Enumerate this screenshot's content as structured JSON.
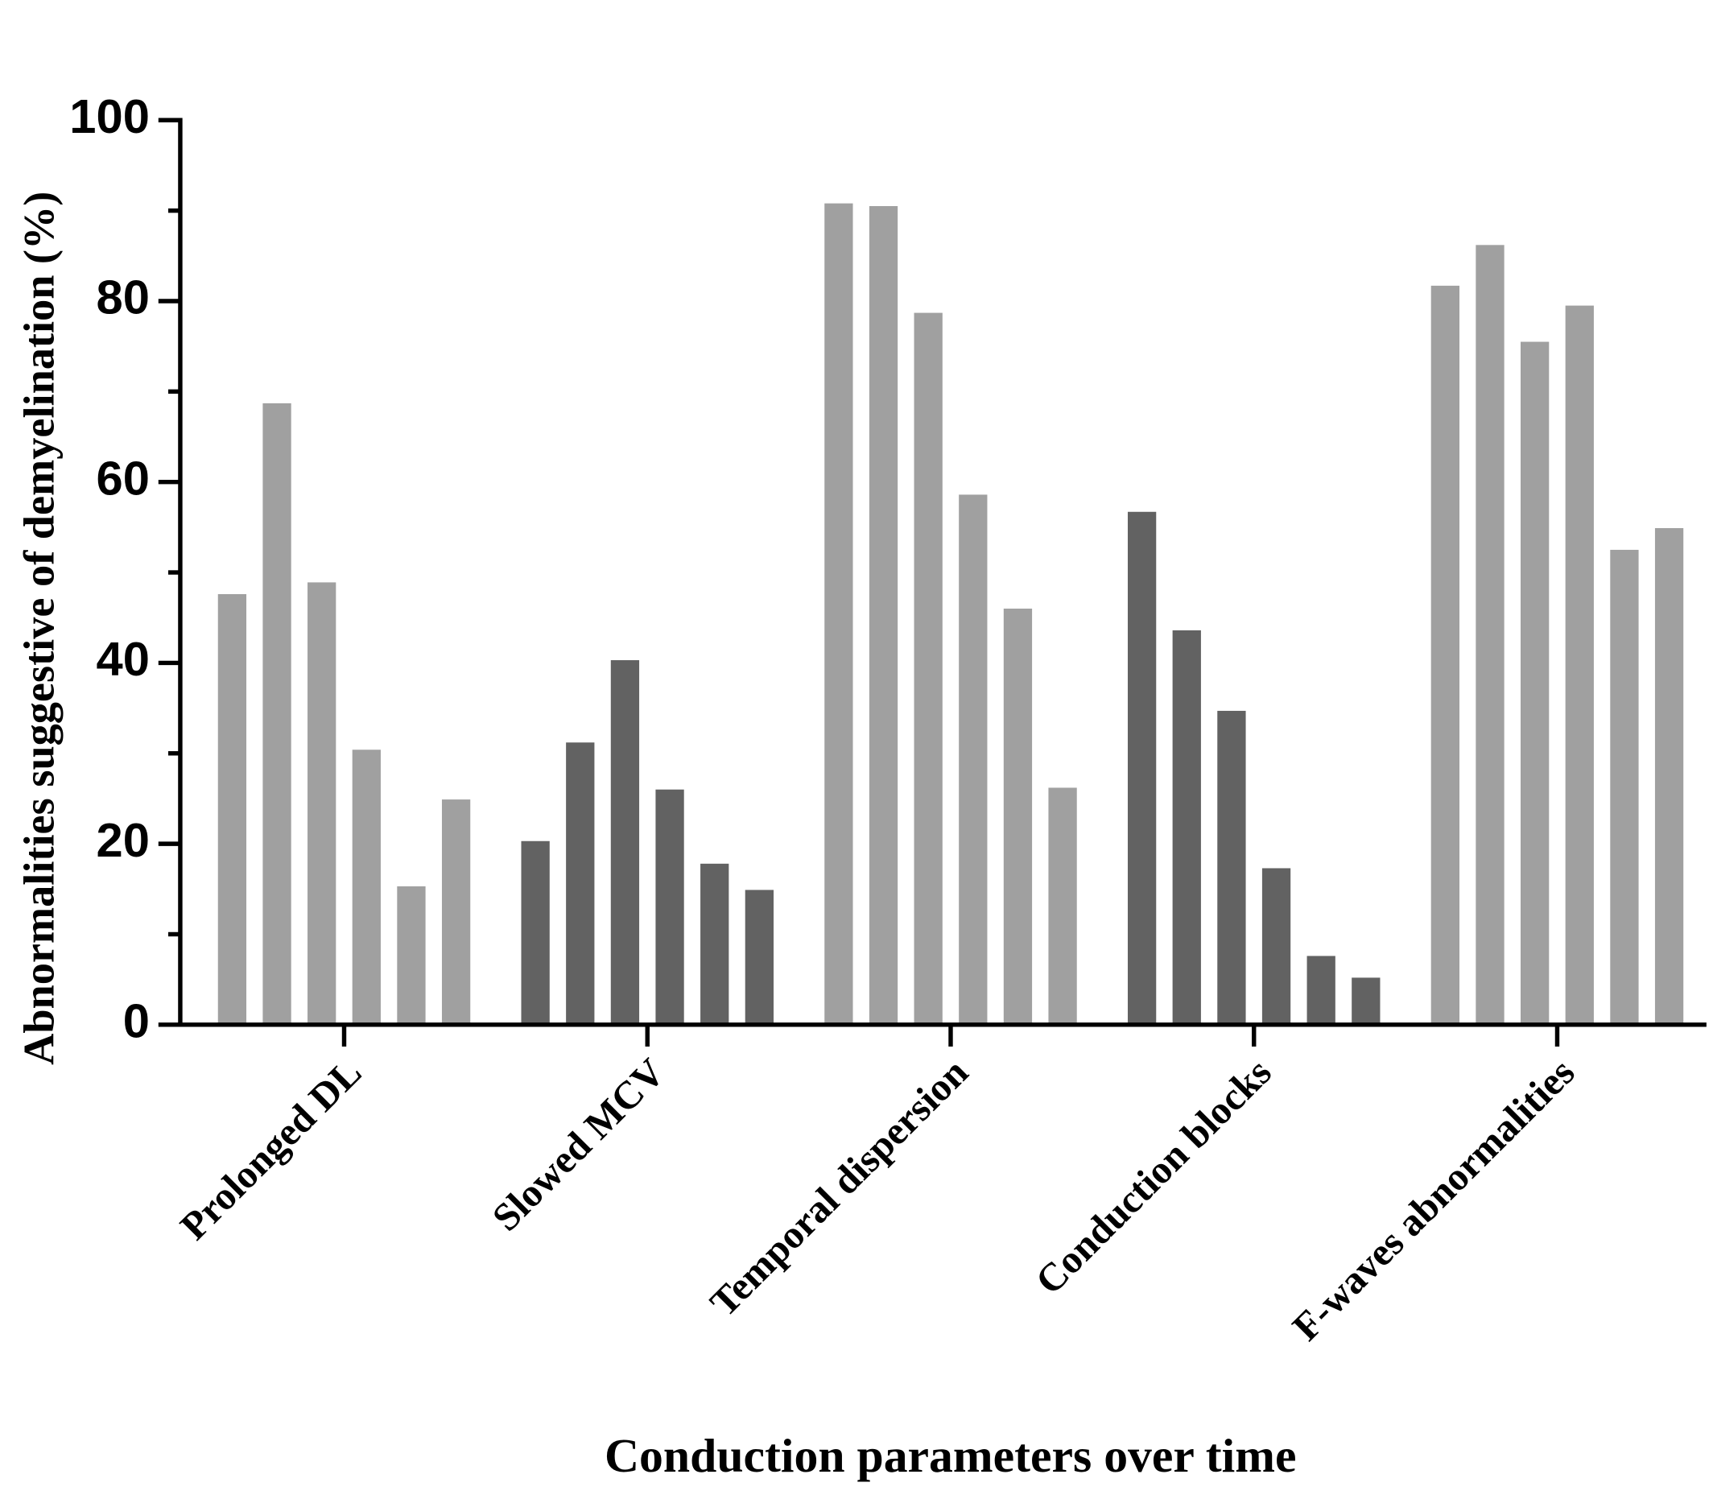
{
  "chart_data": {
    "type": "bar",
    "xlabel": "Conduction parameters over time",
    "ylabel": "Abnormalities suggestive of demyelination (%)",
    "categories": [
      "Prolonged DL",
      "Slowed MCV",
      "Temporal dispersion",
      "Conduction blocks",
      "F-waves abnormalities"
    ],
    "category_colors": [
      "#a0a0a0",
      "#626262",
      "#a0a0a0",
      "#626262",
      "#a0a0a0"
    ],
    "series": [
      {
        "values": [
          47.6,
          20.3,
          90.8,
          56.7,
          81.7
        ]
      },
      {
        "values": [
          68.7,
          31.2,
          90.5,
          43.6,
          86.2
        ]
      },
      {
        "values": [
          48.9,
          40.3,
          78.7,
          34.7,
          75.5
        ]
      },
      {
        "values": [
          30.4,
          26.0,
          58.6,
          17.3,
          79.5
        ]
      },
      {
        "values": [
          15.3,
          17.8,
          46.0,
          7.6,
          52.5
        ]
      },
      {
        "values": [
          24.9,
          14.9,
          26.2,
          5.2,
          54.9
        ]
      }
    ],
    "ylim": [
      0,
      100
    ],
    "yticks": [
      0,
      20,
      40,
      60,
      80,
      100
    ],
    "yminor_ticks": [
      10,
      30,
      50,
      70,
      90
    ],
    "grid": false
  }
}
